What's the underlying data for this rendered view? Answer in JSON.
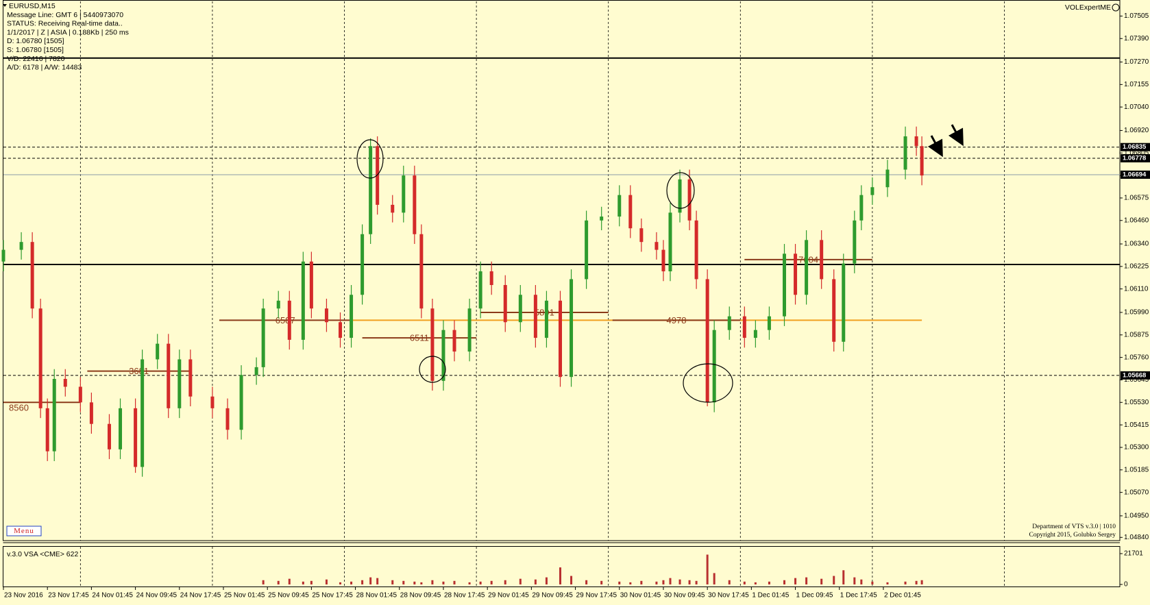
{
  "chart_data": [
    {
      "type": "candlestick",
      "title": "EURUSD,M15",
      "info_lines": [
        "Message Line: GMT 6 | 5440973070",
        "STATUS:  Receiving Real-time data..",
        "1/1/2017 | Z | ASIA | 0.188Kb | 250 ms",
        "D: 1.06780  [1505]",
        "S: 1.06780  [1505]",
        "V/D: 22416 | 7820",
        "A/D: 6178 | A/W: 14483"
      ],
      "x": [
        0,
        13,
        21,
        27,
        32,
        37,
        45,
        56,
        64,
        77,
        85,
        96,
        101,
        112,
        120,
        128,
        136,
        152,
        163,
        173,
        184,
        189,
        200,
        208,
        218,
        224,
        235,
        245,
        253,
        261,
        267,
        272,
        283,
        291,
        299,
        304,
        312,
        320,
        328,
        339,
        347,
        355,
        365,
        376,
        387,
        395,
        405,
        413,
        424,
        435,
        448,
        456,
        464,
        475,
        480,
        485,
        492,
        499,
        504,
        512,
        517,
        528,
        539,
        547,
        557,
        568,
        576,
        584,
        595,
        604,
        611,
        619,
        624,
        632,
        643,
        656,
        664,
        668
      ],
      "open": [
        1.0625,
        1.0631,
        1.0635,
        1.0601,
        1.055,
        1.0528,
        1.0565,
        1.0561,
        1.0553,
        1.0542,
        1.0529,
        1.055,
        1.052,
        1.0575,
        1.0583,
        1.055,
        1.0575,
        1.0556,
        1.055,
        1.0539,
        1.0567,
        1.0571,
        1.0601,
        1.0605,
        1.0585,
        1.0625,
        1.0601,
        1.0594,
        1.0586,
        1.0608,
        1.0639,
        1.0684,
        1.0654,
        1.065,
        1.0669,
        1.0639,
        1.0601,
        1.0564,
        1.059,
        1.0579,
        1.0601,
        1.062,
        1.0613,
        1.0594,
        1.0608,
        1.0586,
        1.0605,
        1.0566,
        1.0616,
        1.0646,
        1.0648,
        1.0659,
        1.0642,
        1.0635,
        1.0631,
        1.062,
        1.065,
        1.0667,
        1.0646,
        1.0616,
        1.0553,
        1.059,
        1.0597,
        1.0586,
        1.059,
        1.0597,
        1.0629,
        1.0608,
        1.0636,
        1.0616,
        1.0584,
        1.0624,
        1.0646,
        1.0659,
        1.0663,
        1.0672,
        1.0689,
        1.0684
      ],
      "high": [
        1.0636,
        1.064,
        1.064,
        1.0606,
        1.0555,
        1.057,
        1.057,
        1.0566,
        1.0558,
        1.0547,
        1.0555,
        1.0555,
        1.058,
        1.0588,
        1.0588,
        1.058,
        1.058,
        1.0561,
        1.0555,
        1.0572,
        1.0576,
        1.0606,
        1.061,
        1.061,
        1.063,
        1.063,
        1.0606,
        1.0599,
        1.0613,
        1.0644,
        1.0688,
        1.0689,
        1.0659,
        1.0674,
        1.0674,
        1.0644,
        1.0606,
        1.0595,
        1.0595,
        1.0606,
        1.0625,
        1.0625,
        1.0618,
        1.0613,
        1.0613,
        1.061,
        1.061,
        1.0621,
        1.0651,
        1.0653,
        1.0664,
        1.0664,
        1.0647,
        1.064,
        1.0636,
        1.0655,
        1.0672,
        1.0672,
        1.0651,
        1.0621,
        1.0595,
        1.0602,
        1.0602,
        1.0595,
        1.0602,
        1.0634,
        1.0634,
        1.0641,
        1.0641,
        1.0621,
        1.0629,
        1.0651,
        1.0664,
        1.0668,
        1.0677,
        1.0694,
        1.0694,
        1.0689
      ],
      "low": [
        1.062,
        1.0626,
        1.0596,
        1.0545,
        1.0523,
        1.0523,
        1.0556,
        1.0548,
        1.0537,
        1.0524,
        1.0524,
        1.0517,
        1.0515,
        1.057,
        1.0545,
        1.0545,
        1.0551,
        1.0545,
        1.0534,
        1.0534,
        1.0562,
        1.0566,
        1.0596,
        1.058,
        1.058,
        1.0596,
        1.0589,
        1.0581,
        1.0581,
        1.0603,
        1.0634,
        1.0649,
        1.0645,
        1.0645,
        1.0634,
        1.0596,
        1.0559,
        1.0559,
        1.0574,
        1.0574,
        1.0596,
        1.0608,
        1.0589,
        1.0589,
        1.0581,
        1.0581,
        1.0561,
        1.0561,
        1.0611,
        1.0641,
        1.0643,
        1.0637,
        1.063,
        1.0626,
        1.0615,
        1.0615,
        1.0645,
        1.0641,
        1.0611,
        1.0551,
        1.0548,
        1.0585,
        1.0581,
        1.0581,
        1.0585,
        1.0592,
        1.0603,
        1.0603,
        1.0611,
        1.0579,
        1.0579,
        1.0619,
        1.0641,
        1.0654,
        1.0658,
        1.0667,
        1.0679,
        1.0664
      ],
      "close": [
        1.0631,
        1.0635,
        1.0601,
        1.055,
        1.0528,
        1.0565,
        1.0561,
        1.0553,
        1.0542,
        1.0529,
        1.055,
        1.052,
        1.0575,
        1.0583,
        1.055,
        1.0575,
        1.0556,
        1.055,
        1.0539,
        1.0567,
        1.0571,
        1.0601,
        1.0605,
        1.0585,
        1.0625,
        1.0601,
        1.0594,
        1.0586,
        1.0608,
        1.0639,
        1.0684,
        1.0654,
        1.065,
        1.0669,
        1.0639,
        1.0601,
        1.0564,
        1.059,
        1.0579,
        1.0601,
        1.062,
        1.0613,
        1.0594,
        1.0608,
        1.0586,
        1.0605,
        1.0566,
        1.0616,
        1.0646,
        1.0648,
        1.0659,
        1.0642,
        1.0635,
        1.0631,
        1.062,
        1.065,
        1.0667,
        1.0646,
        1.0616,
        1.0553,
        1.059,
        1.0597,
        1.0586,
        1.059,
        1.0597,
        1.0629,
        1.0608,
        1.0636,
        1.0616,
        1.0584,
        1.0624,
        1.0646,
        1.0659,
        1.0663,
        1.0672,
        1.0689,
        1.0684,
        1.0669
      ],
      "up_color": "#2e9b2e",
      "down_color": "#d42a2a",
      "xlim": [
        0,
        812
      ],
      "ylim": [
        1.0482,
        1.0758
      ],
      "yticks": [
        1.07505,
        {
          "value": 1.0739,
          "label": "1.07390"
        },
        {
          "value": 1.0727,
          "label": "1.07270"
        },
        1.07155,
        {
          "value": 1.0704,
          "label": "1.07040"
        },
        {
          "value": 1.0692,
          "label": "1.06920"
        },
        1.06805,
        {
          "value": 1.0669,
          "label": "1.06690"
        },
        1.06575,
        {
          "value": 1.0646,
          "label": "1.06460"
        },
        {
          "value": 1.0634,
          "label": "1.06340"
        },
        1.06225,
        {
          "value": 1.0611,
          "label": "1.06110"
        },
        {
          "value": 1.0599,
          "label": "1.05990"
        },
        1.05875,
        {
          "value": 1.0576,
          "label": "1.05760"
        },
        1.05645,
        {
          "value": 1.0553,
          "label": "1.05530"
        },
        1.05415,
        {
          "value": 1.053,
          "label": "1.05300"
        },
        1.05185,
        {
          "value": 1.0507,
          "label": "1.05070"
        },
        {
          "value": 1.0495,
          "label": "1.04950"
        },
        {
          "value": 1.0484,
          "label": "1.04840"
        }
      ],
      "vgrid": [
        56,
        152,
        248,
        344,
        440,
        536,
        632,
        728
      ],
      "hlines": [
        {
          "value": 1.0729,
          "style": "solid",
          "color": "#000000",
          "tag": false
        },
        {
          "value": 1.06235,
          "style": "solid",
          "color": "#000000",
          "tag": false
        },
        {
          "value": 1.06835,
          "style": "dashed",
          "color": "#000000",
          "tag": true
        },
        {
          "value": 1.06778,
          "style": "dashed",
          "color": "#000000",
          "tag": true
        },
        {
          "value": 1.06694,
          "style": "solid",
          "color": "#8a9aa8",
          "tag": true
        },
        {
          "value": 1.05668,
          "style": "dashed",
          "color": "#000000",
          "tag": true
        }
      ],
      "poc_line": {
        "value": 1.0595,
        "x": [
          253,
          668
        ],
        "color": "#f0a020"
      },
      "level_color": "#8b3a1a",
      "levels": [
        {
          "label": 8560,
          "value": 1.0553,
          "x": [
            0,
            56
          ]
        },
        {
          "label": 3681,
          "value": 1.0569,
          "x": [
            61,
            136
          ]
        },
        {
          "label": 6587,
          "value": 1.0595,
          "x": [
            157,
            253
          ]
        },
        {
          "label": 6511,
          "value": 1.0586,
          "x": [
            261,
            344
          ]
        },
        {
          "label": 5891,
          "value": 1.0599,
          "x": [
            347,
            440
          ]
        },
        {
          "label": 4978,
          "value": 1.0595,
          "x": [
            443,
            536
          ]
        },
        {
          "label": 7604,
          "value": 1.0626,
          "x": [
            539,
            632
          ]
        }
      ]
    },
    {
      "type": "bar",
      "title": "v.3.0 VSA <CME> 622",
      "x": [
        0,
        13,
        21,
        27,
        32,
        37,
        45,
        56,
        64,
        77,
        85,
        96,
        101,
        112,
        120,
        128,
        136,
        152,
        163,
        173,
        184,
        189,
        200,
        208,
        218,
        224,
        235,
        245,
        253,
        261,
        267,
        272,
        283,
        291,
        299,
        304,
        312,
        320,
        328,
        339,
        347,
        355,
        365,
        376,
        387,
        395,
        405,
        413,
        424,
        435,
        448,
        456,
        464,
        475,
        480,
        485,
        492,
        499,
        504,
        512,
        517,
        528,
        539,
        547,
        557,
        568,
        576,
        584,
        595,
        604,
        611,
        619,
        624,
        632,
        643,
        656,
        664,
        668
      ],
      "values": [
        0,
        0,
        0,
        0,
        0,
        0,
        0,
        0,
        0,
        0,
        0,
        0,
        0,
        0,
        0,
        0,
        0,
        0,
        0,
        0,
        0,
        3000,
        2500,
        4000,
        2000,
        2500,
        3500,
        1500,
        2000,
        3000,
        5000,
        4500,
        3000,
        2500,
        2000,
        1500,
        3000,
        2000,
        2500,
        1500,
        2000,
        2500,
        3000,
        4000,
        3500,
        5000,
        12000,
        6000,
        3000,
        2500,
        2000,
        1500,
        2500,
        2000,
        3000,
        4500,
        3500,
        3000,
        2500,
        21000,
        8000,
        3000,
        2000,
        1500,
        2000,
        3000,
        4500,
        5000,
        4000,
        6000,
        10000,
        5000,
        3500,
        2000,
        1500,
        2000,
        2500,
        3000
      ],
      "color": "#b83030",
      "xlim": [
        0,
        812
      ],
      "ylim": [
        0,
        21701
      ],
      "yticks": [
        21701,
        0
      ],
      "xticks": [
        {
          "value": 0,
          "label": "23 Nov 2016"
        },
        {
          "value": 32,
          "label": "23 Nov 17:45"
        },
        {
          "value": 64,
          "label": "24 Nov 01:45"
        },
        {
          "value": 96,
          "label": "24 Nov 09:45"
        },
        {
          "value": 128,
          "label": "24 Nov 17:45"
        },
        {
          "value": 160,
          "label": "25 Nov 01:45"
        },
        {
          "value": 192,
          "label": "25 Nov 09:45"
        },
        {
          "value": 224,
          "label": "25 Nov 17:45"
        },
        {
          "value": 256,
          "label": "28 Nov 01:45"
        },
        {
          "value": 288,
          "label": "28 Nov 09:45"
        },
        {
          "value": 320,
          "label": "28 Nov 17:45"
        },
        {
          "value": 352,
          "label": "29 Nov 01:45"
        },
        {
          "value": 384,
          "label": "29 Nov 09:45"
        },
        {
          "value": 416,
          "label": "29 Nov 17:45"
        },
        {
          "value": 448,
          "label": "30 Nov 01:45"
        },
        {
          "value": 480,
          "label": "30 Nov 09:45"
        },
        {
          "value": 512,
          "label": "30 Nov 17:45"
        },
        {
          "value": 544,
          "label": "1 Dec 01:45"
        },
        {
          "value": 576,
          "label": "1 Dec 09:45"
        },
        {
          "value": 608,
          "label": "1 Dec 17:45"
        },
        {
          "value": 640,
          "label": "2 Dec 01:45"
        }
      ]
    }
  ],
  "brand": "VOLExpertME",
  "footer_lines": [
    "Department of VTS  v.3.0 | 1010",
    "Copyright 2015, Golubko Sergey"
  ],
  "menu_label": "Menu"
}
